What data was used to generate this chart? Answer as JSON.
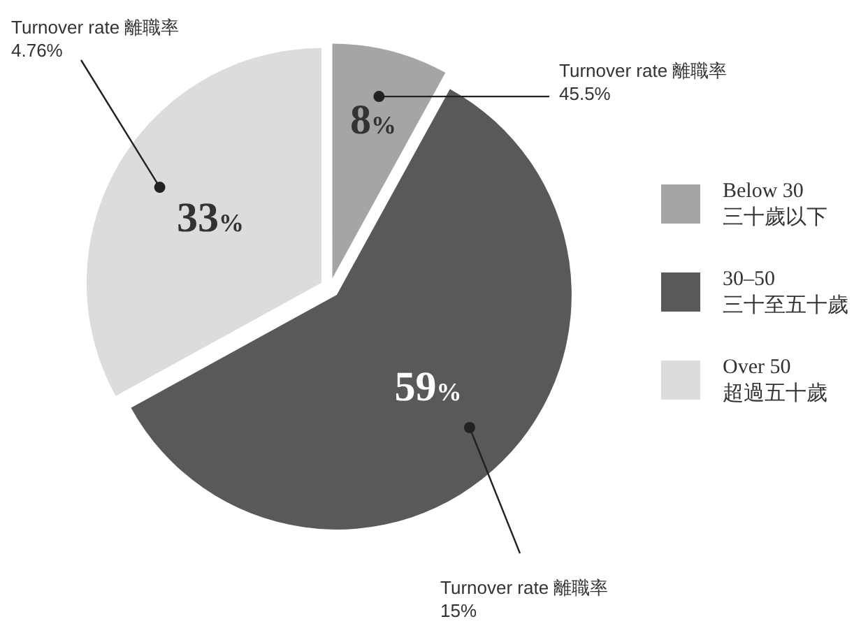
{
  "chart_data": {
    "type": "pie",
    "categories": [
      "Below 30\n三十歲以下",
      "30–50\n三十至五十歲",
      "Over 50\n超過五十歲"
    ],
    "values": [
      8,
      59,
      33
    ],
    "colors": [
      "#a5a5a7",
      "#59595b",
      "#dcdcdd"
    ],
    "value_labels": [
      "8%",
      "59%",
      "33%"
    ],
    "legend": "right",
    "annotations": [
      "Turnover rate 離職率\n45.5%",
      "Turnover rate 離職率\n15%",
      "Turnover rate 離職率\n4.76%"
    ]
  }
}
